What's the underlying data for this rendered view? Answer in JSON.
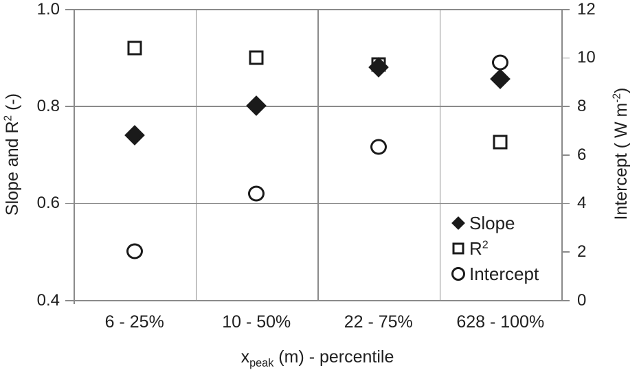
{
  "chart_data": {
    "type": "scatter",
    "title": "",
    "categories": [
      "6 - 25%",
      "10 - 50%",
      "22 - 75%",
      "628 - 100%"
    ],
    "xlabel": {
      "pre": "x",
      "sub": "peak",
      "post": " (m) - percentile"
    },
    "ylabel_left": {
      "pre": "Slope and R",
      "sup": "2",
      "post": " (-)"
    },
    "ylabel_right": {
      "pre": "Intercept ( W m",
      "sup": "-2",
      "post": ")"
    },
    "left_axis": {
      "range": [
        0.4,
        1.0
      ],
      "tick_labels": [
        "1.0",
        "0.8",
        "0.6",
        "0.4"
      ],
      "tick_values": [
        1.0,
        0.8,
        0.6,
        0.4
      ]
    },
    "right_axis": {
      "range": [
        0,
        12
      ],
      "tick_labels": [
        "12",
        "10",
        "8",
        "6",
        "4",
        "2",
        "0"
      ],
      "tick_values": [
        12,
        10,
        8,
        6,
        4,
        2,
        0
      ]
    },
    "gridlines_left_values": [
      0.8,
      0.6
    ],
    "grid": "horizontal-at-0.8-0.6-plus-category-separators",
    "legend_position": "inside-bottom-right",
    "series": [
      {
        "name": "Slope",
        "legend": {
          "text": "Slope",
          "sup": ""
        },
        "marker": "diamond-filled",
        "axis": "left",
        "values": [
          0.74,
          0.8,
          0.88,
          0.855
        ]
      },
      {
        "name": "R2",
        "legend": {
          "text": "R",
          "sup": "2"
        },
        "marker": "square-open",
        "axis": "left",
        "values": [
          0.92,
          0.9,
          0.885,
          0.725
        ]
      },
      {
        "name": "Intercept",
        "legend": {
          "text": "Intercept",
          "sup": ""
        },
        "marker": "circle-open",
        "axis": "right",
        "values": [
          2.0,
          4.4,
          6.3,
          9.8
        ]
      }
    ],
    "colors": {
      "marker": "#1a1a1a",
      "line": "#8a8a8a",
      "text": "#1f1f1f",
      "background": "#ffffff"
    }
  }
}
